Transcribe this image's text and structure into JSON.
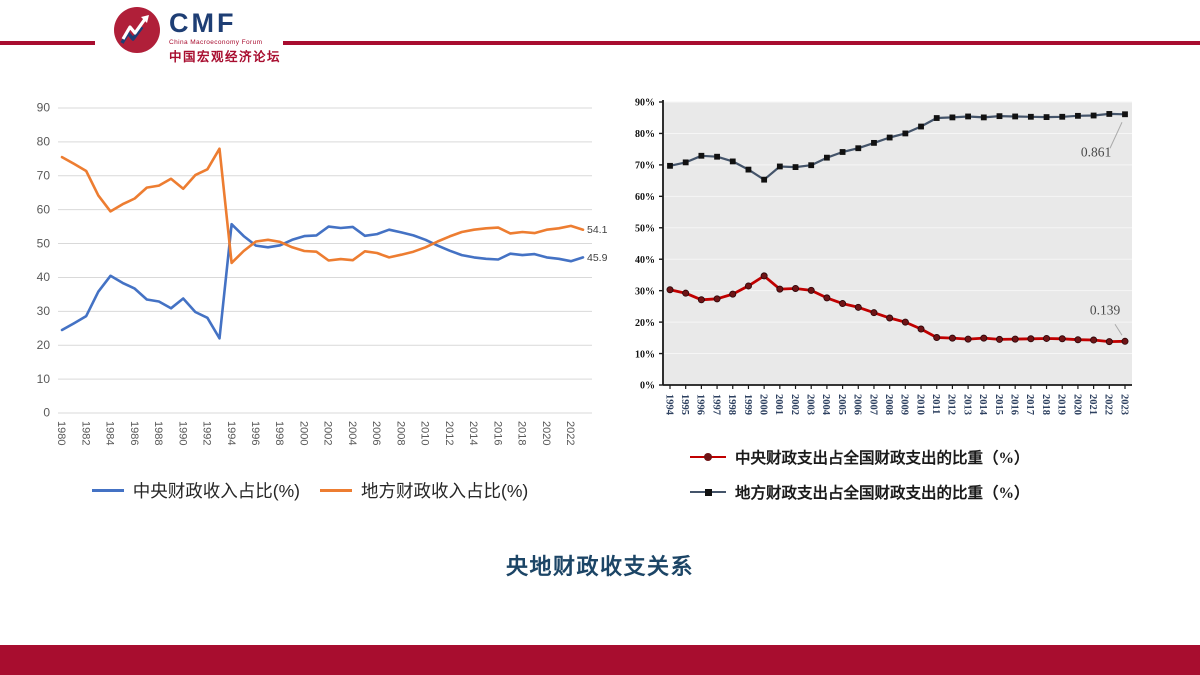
{
  "header": {
    "logo": {
      "acronym": "CMF",
      "subtitle_en": "China Macroeconomy Forum",
      "subtitle_cn": "中国宏观经济论坛"
    },
    "accent_color": "#A80D2F"
  },
  "title": "央地财政收支关系",
  "chart_data": [
    {
      "type": "line",
      "name": "revenue-share-chart",
      "x": [
        1980,
        1981,
        1982,
        1983,
        1984,
        1985,
        1986,
        1987,
        1988,
        1989,
        1990,
        1991,
        1992,
        1993,
        1994,
        1995,
        1996,
        1997,
        1998,
        1999,
        2000,
        2001,
        2002,
        2003,
        2004,
        2005,
        2006,
        2007,
        2008,
        2009,
        2010,
        2011,
        2012,
        2013,
        2014,
        2015,
        2016,
        2017,
        2018,
        2019,
        2020,
        2021,
        2022,
        2023
      ],
      "series": [
        {
          "name": "中央财政收入占比(%)",
          "color": "#4472C4",
          "values": [
            24.5,
            26.5,
            28.6,
            35.8,
            40.5,
            38.4,
            36.7,
            33.5,
            32.9,
            30.9,
            33.8,
            29.8,
            28.1,
            22.0,
            55.7,
            52.2,
            49.4,
            48.9,
            49.5,
            51.1,
            52.2,
            52.4,
            55.0,
            54.6,
            54.9,
            52.3,
            52.8,
            54.1,
            53.3,
            52.4,
            51.1,
            49.4,
            47.9,
            46.6,
            45.9,
            45.5,
            45.3,
            47.0,
            46.6,
            46.9,
            45.9,
            45.5,
            44.8,
            45.9
          ],
          "end_label": "45.9"
        },
        {
          "name": "地方财政收入占比(%)",
          "color": "#ED7D31",
          "values": [
            75.5,
            73.5,
            71.4,
            64.2,
            59.5,
            61.6,
            63.3,
            66.5,
            67.1,
            69.1,
            66.2,
            70.2,
            71.9,
            78.0,
            44.3,
            47.8,
            50.6,
            51.1,
            50.5,
            48.9,
            47.8,
            47.6,
            45.0,
            45.4,
            45.1,
            47.7,
            47.2,
            45.9,
            46.7,
            47.6,
            48.9,
            50.6,
            52.1,
            53.4,
            54.1,
            54.5,
            54.7,
            53.0,
            53.4,
            53.1,
            54.1,
            54.5,
            55.2,
            54.1
          ],
          "end_label": "54.1"
        }
      ],
      "ylim": [
        0,
        90
      ],
      "ytick_step": 10,
      "ytick_labels": [
        "0",
        "10",
        "20",
        "30",
        "40",
        "50",
        "60",
        "70",
        "80",
        "90"
      ],
      "xtick_labels": [
        "1980",
        "1982",
        "1984",
        "1986",
        "1988",
        "1990",
        "1992",
        "1994",
        "1996",
        "1998",
        "2000",
        "2002",
        "2004",
        "2006",
        "2008",
        "2010",
        "2012",
        "2014",
        "2016",
        "2018",
        "2020",
        "2022"
      ],
      "grid": true,
      "legend_position": "bottom"
    },
    {
      "type": "line",
      "name": "expenditure-share-chart",
      "x": [
        1994,
        1995,
        1996,
        1997,
        1998,
        1999,
        2000,
        2001,
        2002,
        2003,
        2004,
        2005,
        2006,
        2007,
        2008,
        2009,
        2010,
        2011,
        2012,
        2013,
        2014,
        2015,
        2016,
        2017,
        2018,
        2019,
        2020,
        2021,
        2022,
        2023
      ],
      "series": [
        {
          "name": "中央财政支出占全国财政支出的比重（%）",
          "color": "#C00000",
          "marker": "circle",
          "marker_color": "#6E1416",
          "values": [
            30.3,
            29.2,
            27.1,
            27.4,
            28.9,
            31.5,
            34.7,
            30.5,
            30.7,
            30.1,
            27.7,
            25.9,
            24.7,
            23.0,
            21.3,
            20.0,
            17.8,
            15.1,
            14.9,
            14.6,
            14.9,
            14.5,
            14.6,
            14.7,
            14.8,
            14.7,
            14.4,
            14.3,
            13.8,
            13.9
          ],
          "end_label": "0.139"
        },
        {
          "name": "地方财政支出占全国财政支出的比重（%）",
          "color": "#44546A",
          "marker": "square",
          "marker_color": "#111111",
          "values": [
            69.7,
            70.8,
            72.9,
            72.6,
            71.1,
            68.5,
            65.3,
            69.5,
            69.3,
            69.9,
            72.3,
            74.1,
            75.3,
            77.0,
            78.7,
            80.0,
            82.2,
            84.9,
            85.1,
            85.4,
            85.1,
            85.5,
            85.4,
            85.3,
            85.2,
            85.3,
            85.6,
            85.7,
            86.2,
            86.1
          ],
          "end_label": "0.861"
        }
      ],
      "ylim": [
        0,
        90
      ],
      "ytick_step": 10,
      "ytick_labels": [
        "0%",
        "10%",
        "20%",
        "30%",
        "40%",
        "50%",
        "60%",
        "70%",
        "80%",
        "90%"
      ],
      "xtick_labels": [
        "1994",
        "1995",
        "1996",
        "1997",
        "1998",
        "1999",
        "2000",
        "2001",
        "2002",
        "2003",
        "2004",
        "2005",
        "2006",
        "2007",
        "2008",
        "2009",
        "2010",
        "2011",
        "2012",
        "2013",
        "2014",
        "2015",
        "2016",
        "2017",
        "2018",
        "2019",
        "2020",
        "2021",
        "2022",
        "2023"
      ],
      "plot_bg": "#E9E9E9",
      "grid": true,
      "legend_position": "bottom"
    }
  ]
}
